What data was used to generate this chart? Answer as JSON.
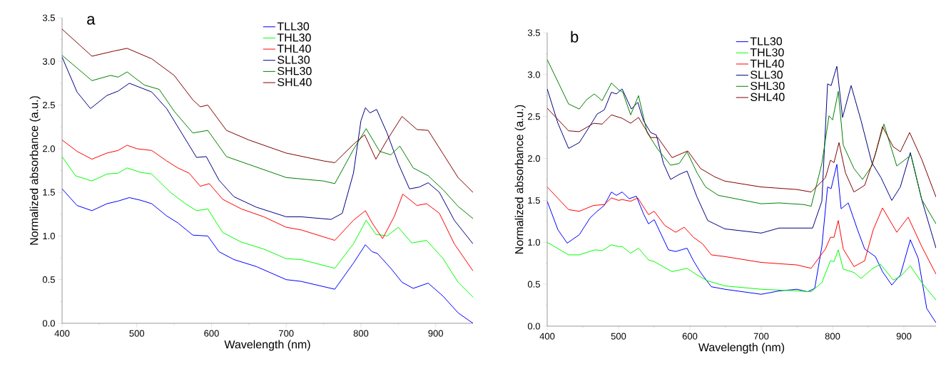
{
  "chart_data": [
    {
      "type": "line",
      "title": "a",
      "xlabel": "Wavelength (nm)",
      "ylabel": "Normalized absorbance (a.u.)",
      "xlim": [
        400,
        950
      ],
      "ylim": [
        0,
        3.5
      ],
      "xticks": [
        400,
        500,
        600,
        700,
        800,
        900
      ],
      "yticks": [
        {
          "value": 0,
          "label": "0.0"
        },
        {
          "value": 0.5,
          "label": "0.5"
        },
        {
          "value": 1,
          "label": "1.0"
        },
        {
          "value": 1.5,
          "label": "1.5"
        },
        {
          "value": 2,
          "label": "2.0"
        },
        {
          "value": 2.5,
          "label": "2.5"
        },
        {
          "value": 3,
          "label": "3.0"
        },
        {
          "value": 3.5,
          "label": "3.5"
        }
      ],
      "legend": "top",
      "grid": false,
      "series": [
        {
          "name": "TLL30",
          "color": "#0000ff",
          "x": [
            400,
            420,
            440,
            460,
            475,
            490,
            505,
            520,
            540,
            555,
            575,
            595,
            610,
            630,
            660,
            700,
            720,
            765,
            790,
            806,
            815,
            822,
            840,
            855,
            870,
            890,
            910,
            930,
            950
          ],
          "values": [
            1.54,
            1.35,
            1.29,
            1.37,
            1.4,
            1.44,
            1.41,
            1.37,
            1.23,
            1.15,
            1.01,
            1.0,
            0.82,
            0.73,
            0.65,
            0.5,
            0.48,
            0.39,
            0.69,
            0.9,
            0.82,
            0.8,
            0.63,
            0.47,
            0.4,
            0.46,
            0.31,
            0.12,
            0.0
          ]
        },
        {
          "name": "THL30",
          "color": "#00ff00",
          "x": [
            400,
            418,
            440,
            460,
            475,
            487,
            505,
            520,
            545,
            565,
            580,
            595,
            615,
            640,
            670,
            700,
            720,
            765,
            790,
            807,
            820,
            835,
            850,
            868,
            888,
            910,
            930,
            950
          ],
          "values": [
            1.91,
            1.69,
            1.63,
            1.71,
            1.72,
            1.78,
            1.73,
            1.71,
            1.5,
            1.37,
            1.29,
            1.31,
            1.04,
            0.93,
            0.85,
            0.74,
            0.73,
            0.63,
            0.91,
            1.18,
            1.02,
            1.0,
            1.1,
            0.92,
            0.95,
            0.74,
            0.47,
            0.3
          ]
        },
        {
          "name": "THL40",
          "color": "#ff0000",
          "x": [
            400,
            420,
            440,
            460,
            475,
            487,
            500,
            520,
            540,
            555,
            570,
            585,
            597,
            615,
            640,
            670,
            700,
            720,
            765,
            790,
            806,
            815,
            829,
            845,
            856,
            875,
            888,
            905,
            925,
            950
          ],
          "values": [
            2.1,
            1.97,
            1.88,
            1.95,
            1.98,
            2.04,
            2.0,
            1.98,
            1.86,
            1.78,
            1.72,
            1.57,
            1.6,
            1.42,
            1.31,
            1.22,
            1.1,
            1.07,
            0.95,
            1.18,
            1.29,
            1.15,
            0.97,
            1.23,
            1.48,
            1.35,
            1.37,
            1.26,
            0.91,
            0.6
          ]
        },
        {
          "name": "SLL30",
          "color": "#000080",
          "x": [
            400,
            420,
            438,
            460,
            475,
            490,
            520,
            540,
            560,
            580,
            593,
            610,
            630,
            660,
            700,
            720,
            760,
            775,
            790,
            800,
            806,
            812,
            821,
            835,
            850,
            865,
            878,
            890,
            905,
            925,
            950
          ],
          "values": [
            3.05,
            2.65,
            2.46,
            2.61,
            2.66,
            2.75,
            2.65,
            2.46,
            2.18,
            1.9,
            1.91,
            1.64,
            1.45,
            1.33,
            1.22,
            1.22,
            1.19,
            1.26,
            1.72,
            2.32,
            2.47,
            2.41,
            2.45,
            2.18,
            1.83,
            1.54,
            1.56,
            1.61,
            1.5,
            1.18,
            0.91
          ]
        },
        {
          "name": "SHL30",
          "color": "#008000",
          "x": [
            400,
            440,
            465,
            475,
            487,
            510,
            530,
            550,
            575,
            595,
            620,
            650,
            700,
            750,
            765,
            790,
            807,
            825,
            840,
            852,
            870,
            890,
            910,
            930,
            950
          ],
          "values": [
            3.07,
            2.78,
            2.84,
            2.82,
            2.88,
            2.73,
            2.68,
            2.43,
            2.18,
            2.21,
            1.91,
            1.82,
            1.67,
            1.63,
            1.6,
            1.99,
            2.23,
            1.97,
            1.93,
            2.03,
            1.78,
            1.69,
            1.53,
            1.34,
            1.2
          ]
        },
        {
          "name": "SHL40",
          "color": "#800000",
          "x": [
            400,
            440,
            470,
            487,
            520,
            550,
            575,
            585,
            595,
            620,
            650,
            700,
            750,
            765,
            790,
            805,
            820,
            835,
            855,
            875,
            890,
            910,
            930,
            950
          ],
          "values": [
            3.37,
            3.06,
            3.12,
            3.15,
            3.03,
            2.84,
            2.56,
            2.48,
            2.5,
            2.21,
            2.1,
            1.95,
            1.86,
            1.84,
            2.05,
            2.16,
            1.88,
            2.1,
            2.37,
            2.22,
            2.21,
            1.94,
            1.67,
            1.5
          ]
        }
      ]
    },
    {
      "type": "line",
      "title": "b",
      "xlabel": "Wavelength (nm)",
      "ylabel": "Normalized absorbance (a.u.)",
      "xlim": [
        400,
        945
      ],
      "ylim": [
        0,
        3.5
      ],
      "xticks": [
        400,
        500,
        600,
        700,
        800,
        900
      ],
      "yticks": [
        {
          "value": 0,
          "label": "0.0"
        },
        {
          "value": 0.5,
          "label": "0.5"
        },
        {
          "value": 1,
          "label": "1.0"
        },
        {
          "value": 1.5,
          "label": "1.5"
        },
        {
          "value": 2,
          "label": "2.0"
        },
        {
          "value": 2.5,
          "label": "2.5"
        },
        {
          "value": 3,
          "label": "3.0"
        },
        {
          "value": 3.5,
          "label": "3.5"
        }
      ],
      "legend": "top",
      "grid": false,
      "series": [
        {
          "name": "TLL30",
          "color": "#0000ff",
          "x": [
            400,
            415,
            428,
            445,
            460,
            470,
            480,
            490,
            497,
            505,
            515,
            525,
            535,
            542,
            550,
            560,
            570,
            580,
            596,
            605,
            615,
            630,
            649,
            700,
            725,
            750,
            765,
            775,
            785,
            793,
            798,
            806,
            812,
            822,
            835,
            845,
            860,
            870,
            883,
            895,
            909,
            920,
            932,
            945
          ],
          "values": [
            1.49,
            1.15,
            0.99,
            1.09,
            1.29,
            1.37,
            1.44,
            1.6,
            1.56,
            1.6,
            1.52,
            1.55,
            1.34,
            1.22,
            1.27,
            1.09,
            0.91,
            0.89,
            0.93,
            0.78,
            0.64,
            0.47,
            0.44,
            0.38,
            0.42,
            0.44,
            0.41,
            0.45,
            0.95,
            1.66,
            1.64,
            1.93,
            1.4,
            1.47,
            1.15,
            0.92,
            0.83,
            0.65,
            0.49,
            0.61,
            1.03,
            0.81,
            0.21,
            0.04
          ]
        },
        {
          "name": "THL30",
          "color": "#00ff00",
          "x": [
            400,
            430,
            445,
            467,
            477,
            490,
            500,
            505,
            517,
            528,
            542,
            550,
            575,
            596,
            610,
            625,
            649,
            700,
            750,
            770,
            785,
            797,
            802,
            808,
            815,
            830,
            840,
            855,
            867,
            885,
            895,
            909,
            925,
            945
          ],
          "values": [
            1.0,
            0.85,
            0.85,
            0.91,
            0.9,
            0.97,
            0.95,
            0.95,
            0.87,
            0.93,
            0.79,
            0.77,
            0.65,
            0.69,
            0.61,
            0.54,
            0.48,
            0.44,
            0.42,
            0.41,
            0.52,
            0.78,
            0.77,
            0.91,
            0.68,
            0.64,
            0.57,
            0.68,
            0.74,
            0.55,
            0.59,
            0.72,
            0.52,
            0.31
          ]
        },
        {
          "name": "THL40",
          "color": "#ff0000",
          "x": [
            400,
            430,
            445,
            465,
            480,
            490,
            500,
            505,
            517,
            527,
            542,
            550,
            565,
            580,
            592,
            605,
            618,
            630,
            649,
            700,
            750,
            770,
            790,
            797,
            802,
            808,
            815,
            830,
            845,
            857,
            870,
            890,
            906,
            925,
            945
          ],
          "values": [
            1.66,
            1.39,
            1.37,
            1.44,
            1.45,
            1.53,
            1.5,
            1.51,
            1.49,
            1.53,
            1.33,
            1.37,
            1.2,
            1.12,
            1.18,
            1.06,
            0.98,
            0.85,
            0.83,
            0.76,
            0.73,
            0.69,
            0.92,
            1.06,
            1.06,
            1.26,
            0.92,
            0.71,
            0.78,
            1.15,
            1.41,
            1.12,
            1.3,
            0.95,
            0.62
          ]
        },
        {
          "name": "SLL30",
          "color": "#000080",
          "x": [
            400,
            415,
            430,
            445,
            460,
            470,
            480,
            490,
            497,
            505,
            518,
            527,
            535,
            545,
            553,
            563,
            573,
            585,
            596,
            610,
            625,
            649,
            700,
            725,
            760,
            772,
            785,
            793,
            798,
            806,
            814,
            826,
            840,
            855,
            868,
            883,
            895,
            909,
            925,
            945
          ],
          "values": [
            2.83,
            2.42,
            2.12,
            2.19,
            2.39,
            2.53,
            2.58,
            2.79,
            2.77,
            2.83,
            2.59,
            2.67,
            2.45,
            2.31,
            2.28,
            1.94,
            1.75,
            1.81,
            1.85,
            1.54,
            1.26,
            1.16,
            1.11,
            1.17,
            1.17,
            1.17,
            1.49,
            2.89,
            2.87,
            3.1,
            2.49,
            2.87,
            2.45,
            1.95,
            1.77,
            1.5,
            1.66,
            2.07,
            1.51,
            0.93
          ]
        },
        {
          "name": "SHL30",
          "color": "#008000",
          "x": [
            400,
            430,
            445,
            455,
            466,
            477,
            490,
            500,
            506,
            517,
            528,
            540,
            555,
            573,
            585,
            596,
            610,
            622,
            640,
            700,
            725,
            760,
            770,
            785,
            795,
            800,
            808,
            815,
            830,
            842,
            855,
            872,
            890,
            910,
            925,
            945
          ],
          "values": [
            3.18,
            2.65,
            2.59,
            2.7,
            2.77,
            2.69,
            2.9,
            2.82,
            2.79,
            2.52,
            2.75,
            2.31,
            2.11,
            1.92,
            1.94,
            2.08,
            1.83,
            1.66,
            1.56,
            1.46,
            1.47,
            1.45,
            1.43,
            1.94,
            2.51,
            2.46,
            2.8,
            2.16,
            1.88,
            1.75,
            1.91,
            2.41,
            1.91,
            2.04,
            1.51,
            1.22
          ]
        },
        {
          "name": "SHL40",
          "color": "#800000",
          "x": [
            400,
            430,
            445,
            465,
            477,
            490,
            505,
            517,
            528,
            545,
            555,
            575,
            597,
            615,
            635,
            649,
            700,
            750,
            770,
            790,
            797,
            802,
            809,
            818,
            830,
            845,
            860,
            870,
            885,
            895,
            908,
            925,
            945
          ],
          "values": [
            2.6,
            2.33,
            2.32,
            2.42,
            2.41,
            2.52,
            2.48,
            2.42,
            2.49,
            2.25,
            2.25,
            2.01,
            2.09,
            1.88,
            1.78,
            1.73,
            1.66,
            1.63,
            1.6,
            1.77,
            1.98,
            1.95,
            2.19,
            1.83,
            1.6,
            1.68,
            2.05,
            2.38,
            2.14,
            2.08,
            2.31,
            1.99,
            1.54
          ]
        }
      ]
    }
  ]
}
